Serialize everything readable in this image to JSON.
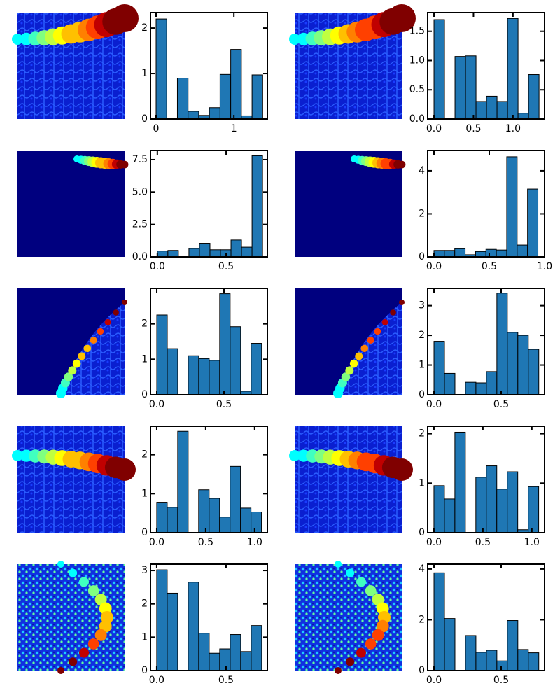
{
  "chart_data": [
    {
      "type": "histogram",
      "color": "#1f77b4",
      "bins": [
        0,
        0.137,
        0.274,
        0.411,
        0.548,
        0.685,
        0.822,
        0.959,
        1.096,
        1.233,
        1.37
      ],
      "values": [
        2.2,
        0,
        0.9,
        0.17,
        0.08,
        0.25,
        0.98,
        1.53,
        0.07,
        0.97
      ],
      "xlim": [
        -0.072,
        1.43
      ],
      "ylim": [
        0,
        2.34
      ],
      "xticks": [
        0,
        1
      ],
      "yticks": [
        0,
        1,
        2
      ]
    },
    {
      "type": "histogram",
      "color": "#1f77b4",
      "bins": [
        0,
        0.133,
        0.266,
        0.399,
        0.532,
        0.665,
        0.798,
        0.931,
        1.064,
        1.197,
        1.33
      ],
      "values": [
        1.7,
        0,
        1.07,
        1.08,
        0.3,
        0.39,
        0.3,
        1.72,
        0.1,
        0.76
      ],
      "xlim": [
        -0.08,
        1.4
      ],
      "ylim": [
        0,
        1.82
      ],
      "xticks": [
        {
          "value": 0,
          "label": "0.0"
        },
        0.5,
        {
          "value": 1,
          "label": "1.0"
        }
      ],
      "yticks": [
        {
          "value": 0,
          "label": "0.0"
        },
        0.5,
        {
          "value": 1,
          "label": "1.0"
        },
        1.5
      ]
    },
    {
      "type": "histogram",
      "color": "#1f77b4",
      "bins": [
        0,
        0.0765,
        0.153,
        0.2295,
        0.306,
        0.3825,
        0.459,
        0.5355,
        0.612,
        0.6885,
        0.765
      ],
      "values": [
        0.45,
        0.5,
        0,
        0.65,
        1.05,
        0.55,
        0.55,
        1.3,
        0.75,
        7.8
      ],
      "xlim": [
        -0.05,
        0.8
      ],
      "ylim": [
        0,
        8.2
      ],
      "xticks": [
        {
          "value": 0,
          "label": "0.0"
        },
        0.5
      ],
      "yticks": [
        {
          "value": 0,
          "label": "0.0"
        },
        2.5,
        {
          "value": 5,
          "label": "5.0"
        },
        7.5
      ]
    },
    {
      "type": "histogram",
      "color": "#1f77b4",
      "bins": [
        0,
        0.094,
        0.188,
        0.282,
        0.376,
        0.47,
        0.564,
        0.658,
        0.752,
        0.846,
        0.94
      ],
      "values": [
        0.3,
        0.3,
        0.38,
        0.1,
        0.25,
        0.35,
        0.32,
        4.65,
        0.55,
        3.15
      ],
      "xlim": [
        -0.057,
        1.0
      ],
      "ylim": [
        0,
        4.94
      ],
      "xticks": [
        {
          "value": 0,
          "label": "0.0"
        },
        0.5,
        {
          "value": 1,
          "label": "1.0"
        }
      ],
      "yticks": [
        0,
        2,
        4
      ]
    },
    {
      "type": "histogram",
      "color": "#1f77b4",
      "bins": [
        0,
        0.078,
        0.156,
        0.234,
        0.312,
        0.39,
        0.468,
        0.546,
        0.624,
        0.702,
        0.78
      ],
      "values": [
        2.25,
        1.3,
        0,
        1.1,
        1.02,
        0.97,
        2.85,
        1.92,
        0.1,
        1.45
      ],
      "xlim": [
        -0.047,
        0.823
      ],
      "ylim": [
        0,
        3.0
      ],
      "xticks": [
        {
          "value": 0,
          "label": "0.0"
        },
        0.5
      ],
      "yticks": [
        0,
        1,
        2
      ]
    },
    {
      "type": "histogram",
      "color": "#1f77b4",
      "bins": [
        0,
        0.078,
        0.156,
        0.234,
        0.312,
        0.39,
        0.468,
        0.546,
        0.624,
        0.702,
        0.78
      ],
      "values": [
        1.8,
        0.72,
        0,
        0.42,
        0.4,
        0.78,
        3.42,
        2.1,
        2.0,
        1.53
      ],
      "xlim": [
        -0.047,
        0.823
      ],
      "ylim": [
        0,
        3.58
      ],
      "xticks": [
        {
          "value": 0,
          "label": "0.0"
        },
        0.5
      ],
      "yticks": [
        0,
        1,
        2,
        3
      ]
    },
    {
      "type": "histogram",
      "color": "#1f77b4",
      "bins": [
        0,
        0.107,
        0.214,
        0.321,
        0.428,
        0.535,
        0.642,
        0.749,
        0.856,
        0.963,
        1.07
      ],
      "values": [
        0.78,
        0.65,
        2.6,
        0,
        1.1,
        0.88,
        0.4,
        1.7,
        0.63,
        0.53
      ],
      "xlim": [
        -0.064,
        1.13
      ],
      "ylim": [
        0,
        2.73
      ],
      "xticks": [
        {
          "value": 0,
          "label": "0.0"
        },
        0.5,
        {
          "value": 1,
          "label": "1.0"
        }
      ],
      "yticks": [
        0,
        1,
        2
      ]
    },
    {
      "type": "histogram",
      "color": "#1f77b4",
      "bins": [
        0,
        0.107,
        0.214,
        0.321,
        0.428,
        0.535,
        0.642,
        0.749,
        0.856,
        0.963,
        1.07
      ],
      "values": [
        0.95,
        0.68,
        2.03,
        0,
        1.12,
        1.35,
        0.88,
        1.23,
        0.06,
        0.93
      ],
      "xlim": [
        -0.064,
        1.13
      ],
      "ylim": [
        0,
        2.15
      ],
      "xticks": [
        {
          "value": 0,
          "label": "0.0"
        },
        0.5,
        {
          "value": 1,
          "label": "1.0"
        }
      ],
      "yticks": [
        0,
        1,
        2
      ]
    },
    {
      "type": "histogram",
      "color": "#1f77b4",
      "bins": [
        0,
        0.0757,
        0.1514,
        0.2271,
        0.3028,
        0.3785,
        0.4542,
        0.5299,
        0.6056,
        0.6813,
        0.757
      ],
      "values": [
        3.02,
        2.32,
        0,
        2.65,
        1.12,
        0.52,
        0.65,
        1.08,
        0.57,
        1.35
      ],
      "xlim": [
        -0.045,
        0.798
      ],
      "ylim": [
        0,
        3.19
      ],
      "xticks": [
        {
          "value": 0,
          "label": "0.0"
        },
        0.5
      ],
      "yticks": [
        0,
        1,
        2,
        3
      ]
    },
    {
      "type": "histogram",
      "color": "#1f77b4",
      "bins": [
        0,
        0.078,
        0.156,
        0.234,
        0.312,
        0.39,
        0.468,
        0.546,
        0.624,
        0.702,
        0.78
      ],
      "values": [
        3.85,
        2.05,
        0,
        1.38,
        0.72,
        0.8,
        0.38,
        1.97,
        0.83,
        0.7
      ],
      "xlim": [
        -0.047,
        0.823
      ],
      "ylim": [
        0,
        4.19
      ],
      "xticks": [
        {
          "value": 0,
          "label": "0.0"
        },
        0.5
      ],
      "yticks": [
        0,
        2,
        4
      ]
    }
  ]
}
